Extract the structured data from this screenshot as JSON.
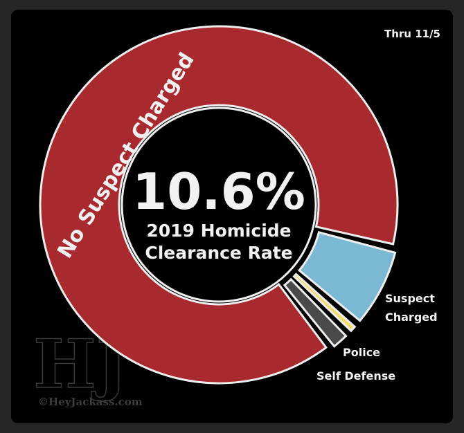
{
  "chart_data": {
    "type": "pie",
    "subtitle": "Thru 11/5",
    "center_value": "10.6%",
    "center_line1": "2019 Homicide",
    "center_line2": "Clearance Rate",
    "slices": [
      {
        "name": "No Suspect Charged",
        "value": 89.4,
        "color": "#a82a2f"
      },
      {
        "name": "Suspect Charged",
        "value": 7.5,
        "color": "#7ab8d4"
      },
      {
        "name": "Police",
        "value": 1.1,
        "color": "#f4dc6a"
      },
      {
        "name": "Self Defense",
        "value": 2.0,
        "color": "#4a4a4a"
      }
    ],
    "labels": {
      "suspect_line1": "Suspect",
      "suspect_line2": "Charged",
      "police": "Police",
      "self_defense": "Self Defense"
    }
  },
  "watermark": {
    "logo": "HJ",
    "text": "©HeyJackass.com"
  }
}
